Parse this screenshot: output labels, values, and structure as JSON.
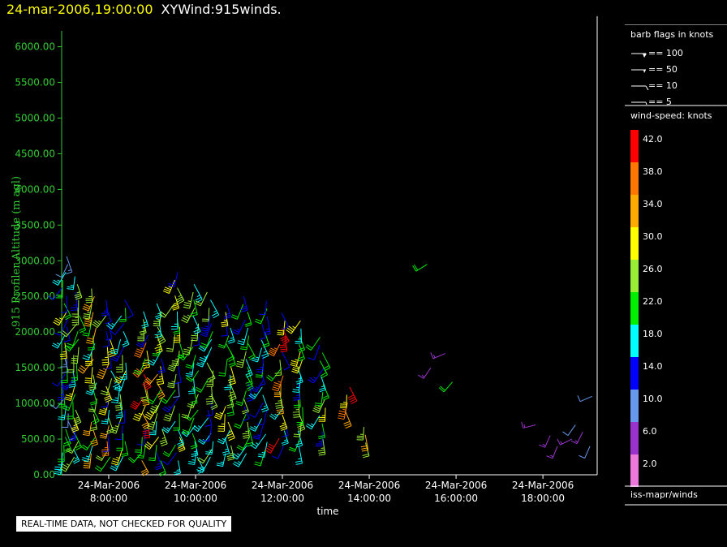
{
  "header": {
    "datetime": "24-mar-2006,19:00:00",
    "product": "XYWind:915winds."
  },
  "footer_notice": "REAL-TIME DATA, NOT CHECKED FOR QUALITY",
  "legend": {
    "barb_title": "barb flags in knots",
    "barb_entries": [
      "== 100",
      "== 50",
      "== 10",
      "== 5"
    ],
    "speed_title": "wind-speed: knots",
    "speed_levels": [
      {
        "label": "42.0",
        "color": "#ff0000"
      },
      {
        "label": "38.0",
        "color": "#ff7700"
      },
      {
        "label": "34.0",
        "color": "#ffaa00"
      },
      {
        "label": "30.0",
        "color": "#ffff00"
      },
      {
        "label": "26.0",
        "color": "#99ee33"
      },
      {
        "label": "22.0",
        "color": "#00ee00"
      },
      {
        "label": "18.0",
        "color": "#00ffff"
      },
      {
        "label": "14.0",
        "color": "#0000ff"
      },
      {
        "label": "10.0",
        "color": "#6699ee"
      },
      {
        "label": "6.0",
        "color": "#9933cc"
      },
      {
        "label": "2.0",
        "color": "#ee77dd"
      }
    ],
    "source": "iss-mapr/winds"
  },
  "chart_data": {
    "type": "wind-barb",
    "title": "",
    "xlabel": "time",
    "ylabel": "915 Profiler Altitude (m agl)",
    "ylim": [
      0,
      6200
    ],
    "yticks": [
      "0.00",
      "500.00",
      "1000.00",
      "1500.00",
      "2000.00",
      "2500.00",
      "3000.00",
      "3500.00",
      "4000.00",
      "4500.00",
      "5000.00",
      "5500.00",
      "6000.00"
    ],
    "xlim": [
      "06:55",
      "19:15"
    ],
    "xticks": [
      {
        "date": "24-Mar-2006",
        "time": "8:00:00",
        "hour": 8
      },
      {
        "date": "24-Mar-2006",
        "time": "10:00:00",
        "hour": 10
      },
      {
        "date": "24-Mar-2006",
        "time": "12:00:00",
        "hour": 12
      },
      {
        "date": "24-Mar-2006",
        "time": "14:00:00",
        "hour": 14
      },
      {
        "date": "24-Mar-2006",
        "time": "16:00:00",
        "hour": 16
      },
      {
        "date": "24-Mar-2006",
        "time": "18:00:00",
        "hour": 18
      }
    ],
    "profiles": [
      {
        "time": "07:00",
        "heights": [
          200,
          3100
        ],
        "speed_range": [
          8,
          30
        ]
      },
      {
        "time": "07:15",
        "heights": [
          250,
          2800
        ],
        "speed_range": [
          14,
          34
        ]
      },
      {
        "time": "07:40",
        "heights": [
          300,
          2700
        ],
        "speed_range": [
          14,
          36
        ]
      },
      {
        "time": "08:00",
        "heights": [
          250,
          2450
        ],
        "speed_range": [
          12,
          40
        ]
      },
      {
        "time": "08:20",
        "heights": [
          250,
          2450
        ],
        "speed_range": [
          12,
          30
        ]
      },
      {
        "time": "08:50",
        "heights": [
          200,
          2300
        ],
        "speed_range": [
          14,
          42
        ]
      },
      {
        "time": "09:10",
        "heights": [
          200,
          2500
        ],
        "speed_range": [
          14,
          34
        ]
      },
      {
        "time": "09:35",
        "heights": [
          200,
          2900
        ],
        "speed_range": [
          10,
          30
        ]
      },
      {
        "time": "10:00",
        "heights": [
          250,
          2700
        ],
        "speed_range": [
          12,
          30
        ]
      },
      {
        "time": "10:20",
        "heights": [
          250,
          2600
        ],
        "speed_range": [
          14,
          26
        ]
      },
      {
        "time": "10:45",
        "heights": [
          300,
          2400
        ],
        "speed_range": [
          14,
          30
        ]
      },
      {
        "time": "11:10",
        "heights": [
          300,
          2600
        ],
        "speed_range": [
          14,
          26
        ]
      },
      {
        "time": "11:35",
        "heights": [
          350,
          2500
        ],
        "speed_range": [
          14,
          22
        ]
      },
      {
        "time": "12:00",
        "heights": [
          400,
          2300
        ],
        "speed_range": [
          12,
          42
        ]
      },
      {
        "time": "12:25",
        "heights": [
          400,
          2200
        ],
        "speed_range": [
          14,
          30
        ]
      },
      {
        "time": "12:55",
        "heights": [
          500,
          2000
        ],
        "speed_range": [
          14,
          30
        ]
      },
      {
        "time": "13:30",
        "heights": [
          900,
          1300
        ],
        "speed_range": [
          18,
          42
        ]
      },
      {
        "time": "13:55",
        "heights": [
          450,
          700
        ],
        "speed_range": [
          22,
          38
        ]
      }
    ],
    "isolated_barbs": [
      {
        "time": "15:20",
        "height": 2950,
        "speed": 22
      },
      {
        "time": "15:25",
        "height": 1500,
        "speed": 6
      },
      {
        "time": "15:45",
        "height": 1700,
        "speed": 6
      },
      {
        "time": "15:55",
        "height": 1300,
        "speed": 22
      },
      {
        "time": "17:50",
        "height": 700,
        "speed": 6
      },
      {
        "time": "18:10",
        "height": 550,
        "speed": 6
      },
      {
        "time": "18:20",
        "height": 400,
        "speed": 6
      },
      {
        "time": "18:40",
        "height": 500,
        "speed": 6
      },
      {
        "time": "18:45",
        "height": 700,
        "speed": 10
      },
      {
        "time": "18:55",
        "height": 600,
        "speed": 6
      },
      {
        "time": "19:05",
        "height": 400,
        "speed": 10
      },
      {
        "time": "19:08",
        "height": 1100,
        "speed": 10
      }
    ],
    "grid": false,
    "legend_position": "right"
  }
}
